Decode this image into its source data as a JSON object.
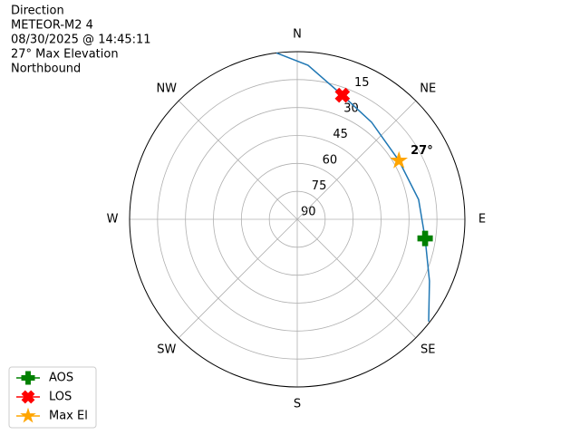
{
  "chart_data": {
    "type": "polar",
    "title_lines": [
      "Direction",
      "METEOR-M2 4",
      "08/30/2025 @ 14:45:11",
      "27° Max Elevation",
      "Northbound"
    ],
    "rlim": [
      90,
      0
    ],
    "rticks": [
      15,
      30,
      45,
      60,
      75,
      90
    ],
    "thetaticks": [
      {
        "value": 0,
        "label": "N"
      },
      {
        "value": 45,
        "label": "NE"
      },
      {
        "value": 90,
        "label": "E"
      },
      {
        "value": 135,
        "label": "SE"
      },
      {
        "value": 180,
        "label": "S"
      },
      {
        "value": 225,
        "label": "SW"
      },
      {
        "value": 270,
        "label": "W"
      },
      {
        "value": 315,
        "label": "NW"
      }
    ],
    "grid": true,
    "track": {
      "color": "#1f77b4",
      "theta": [
        352.9,
        4.0,
        20.0,
        37.5,
        60.0,
        80.7,
        98.5,
        115.0,
        127.9
      ],
      "r": [
        0.0,
        7.1,
        19.1,
        24.4,
        27.0,
        24.0,
        20.6,
        11.7,
        0.6
      ]
    },
    "series": [
      {
        "name": "AOS",
        "color": "green",
        "marker": "plus",
        "theta": [
          98.5
        ],
        "r": [
          20.6
        ]
      },
      {
        "name": "LOS",
        "color": "red",
        "marker": "x",
        "theta": [
          20.0
        ],
        "r": [
          19.1
        ]
      },
      {
        "name": "Max El",
        "color": "orange",
        "marker": "star",
        "theta": [
          60.0
        ],
        "r": [
          27.0
        ]
      }
    ],
    "annotation": "27°",
    "legend": "lower left"
  }
}
